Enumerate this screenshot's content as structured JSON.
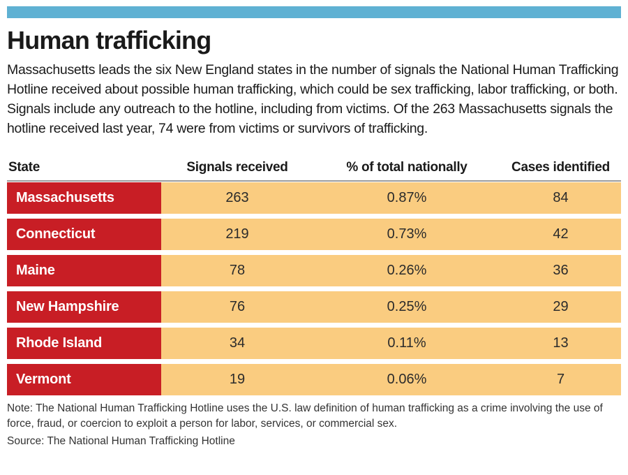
{
  "colors": {
    "accent": "#5FB1D3",
    "state-red": "#C81E25",
    "data-orange": "#FACC80"
  },
  "title": "Human trafficking",
  "intro": "Massachusetts leads the six New England states in the number of signals the National Human Trafficking Hotline received about possible human trafficking, which could be sex trafficking, labor trafficking, or both. Signals include any outreach to the hotline, including from victims. Of the 263 Massachusetts signals the hotline received last year, 74 were from victims or survivors of trafficking.",
  "table": {
    "columns": [
      "State",
      "Signals received",
      "% of total nationally",
      "Cases identified"
    ],
    "rows": [
      {
        "state": "Massachusetts",
        "signals": "263",
        "pct": "0.87%",
        "cases": "84"
      },
      {
        "state": "Connecticut",
        "signals": "219",
        "pct": "0.73%",
        "cases": "42"
      },
      {
        "state": "Maine",
        "signals": "78",
        "pct": "0.26%",
        "cases": "36"
      },
      {
        "state": "New Hampshire",
        "signals": "76",
        "pct": "0.25%",
        "cases": "29"
      },
      {
        "state": "Rhode Island",
        "signals": "34",
        "pct": "0.11%",
        "cases": "13"
      },
      {
        "state": "Vermont",
        "signals": "19",
        "pct": "0.06%",
        "cases": "7"
      }
    ]
  },
  "note": "Note: The National Human Trafficking Hotline uses the U.S. law definition of human trafficking as a crime involving the use of force, fraud, or coercion to exploit a person for labor, services, or commercial sex.",
  "source": "Source: The National Human Trafficking Hotline",
  "chart_data": {
    "type": "table",
    "title": "Human trafficking",
    "columns": [
      "State",
      "Signals received",
      "% of total nationally",
      "Cases identified"
    ],
    "rows": [
      [
        "Massachusetts",
        263,
        "0.87%",
        84
      ],
      [
        "Connecticut",
        219,
        "0.73%",
        42
      ],
      [
        "Maine",
        78,
        "0.26%",
        36
      ],
      [
        "New Hampshire",
        76,
        "0.25%",
        29
      ],
      [
        "Rhode Island",
        34,
        "0.11%",
        13
      ],
      [
        "Vermont",
        19,
        "0.06%",
        7
      ]
    ]
  }
}
